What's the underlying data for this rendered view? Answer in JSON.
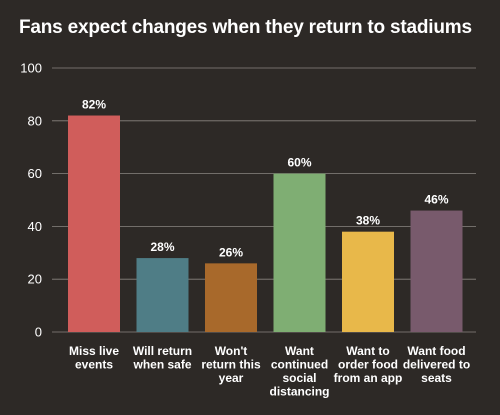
{
  "chart_data": {
    "type": "bar",
    "title": "Fans expect changes when they return to stadiums",
    "categories": [
      [
        "Miss live",
        "events"
      ],
      [
        "Will return",
        "when safe"
      ],
      [
        "Won't",
        "return this",
        "year"
      ],
      [
        "Want",
        "continued",
        "social",
        "distancing"
      ],
      [
        "Want to",
        "order food",
        "from an app"
      ],
      [
        "Want food",
        "delivered to",
        "seats"
      ]
    ],
    "values": [
      82,
      28,
      26,
      60,
      38,
      46
    ],
    "data_labels": [
      "82%",
      "28%",
      "26%",
      "60%",
      "38%",
      "46%"
    ],
    "colors": [
      "#d05d5b",
      "#4f7d86",
      "#a8692b",
      "#7fae73",
      "#e8b84a",
      "#785a6c"
    ],
    "ylim": [
      0,
      100
    ],
    "yticks": [
      0,
      20,
      40,
      60,
      80,
      100
    ],
    "xlabel": "",
    "ylabel": "",
    "grid": true
  }
}
